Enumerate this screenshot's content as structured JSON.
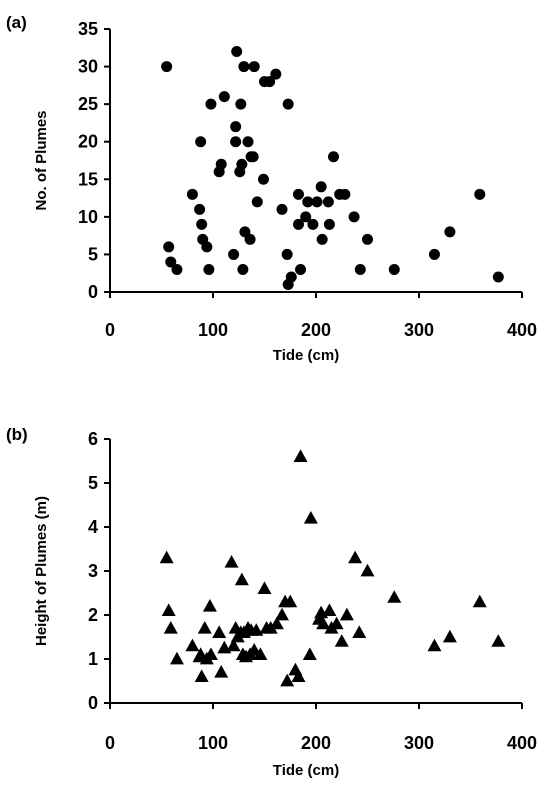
{
  "chart_data": [
    {
      "panel_label": "(a)",
      "type": "scatter",
      "marker": "circle",
      "xlabel": "Tide (cm)",
      "ylabel": "No. of Plumes",
      "xlim": [
        0,
        400
      ],
      "ylim": [
        0,
        35
      ],
      "xticks": [
        0,
        100,
        200,
        300,
        400
      ],
      "yticks": [
        0,
        5,
        10,
        15,
        20,
        25,
        30,
        35
      ],
      "grid": false,
      "series": [
        {
          "points": [
            [
              55,
              30
            ],
            [
              57,
              6
            ],
            [
              59,
              4
            ],
            [
              65,
              3
            ],
            [
              80,
              13
            ],
            [
              87,
              11
            ],
            [
              88,
              20
            ],
            [
              89,
              9
            ],
            [
              90,
              7
            ],
            [
              94,
              6
            ],
            [
              96,
              3
            ],
            [
              98,
              25
            ],
            [
              106,
              16
            ],
            [
              108,
              17
            ],
            [
              111,
              26
            ],
            [
              120,
              5
            ],
            [
              122,
              22
            ],
            [
              122,
              20
            ],
            [
              123,
              32
            ],
            [
              126,
              16
            ],
            [
              127,
              25
            ],
            [
              128,
              17
            ],
            [
              129,
              3
            ],
            [
              130,
              30
            ],
            [
              131,
              8
            ],
            [
              134,
              20
            ],
            [
              136,
              7
            ],
            [
              137,
              18
            ],
            [
              139,
              18
            ],
            [
              140,
              30
            ],
            [
              143,
              12
            ],
            [
              149,
              15
            ],
            [
              150,
              28
            ],
            [
              155,
              28
            ],
            [
              161,
              29
            ],
            [
              167,
              11
            ],
            [
              172,
              5
            ],
            [
              173,
              25
            ],
            [
              173,
              1
            ],
            [
              176,
              2
            ],
            [
              183,
              13
            ],
            [
              183,
              9
            ],
            [
              185,
              3
            ],
            [
              190,
              10
            ],
            [
              192,
              12
            ],
            [
              197,
              9
            ],
            [
              201,
              12
            ],
            [
              205,
              14
            ],
            [
              206,
              7
            ],
            [
              212,
              12
            ],
            [
              213,
              9
            ],
            [
              217,
              18
            ],
            [
              223,
              13
            ],
            [
              228,
              13
            ],
            [
              237,
              10
            ],
            [
              243,
              3
            ],
            [
              250,
              7
            ],
            [
              276,
              3
            ],
            [
              315,
              5
            ],
            [
              330,
              8
            ],
            [
              359,
              13
            ],
            [
              377,
              2
            ]
          ]
        }
      ]
    },
    {
      "panel_label": "(b)",
      "type": "scatter",
      "marker": "triangle",
      "xlabel": "Tide (cm)",
      "ylabel": "Height of Plumes (m)",
      "xlim": [
        0,
        400
      ],
      "ylim": [
        0,
        6
      ],
      "xticks": [
        0,
        100,
        200,
        300,
        400
      ],
      "yticks": [
        0,
        1,
        2,
        3,
        4,
        5,
        6
      ],
      "grid": false,
      "series": [
        {
          "points": [
            [
              55,
              3.3
            ],
            [
              57,
              2.1
            ],
            [
              59,
              1.7
            ],
            [
              65,
              1.0
            ],
            [
              80,
              1.3
            ],
            [
              87,
              1.05
            ],
            [
              88,
              1.1
            ],
            [
              89,
              0.6
            ],
            [
              92,
              1.7
            ],
            [
              94,
              1.0
            ],
            [
              97,
              2.2
            ],
            [
              98,
              1.1
            ],
            [
              106,
              1.6
            ],
            [
              108,
              0.7
            ],
            [
              111,
              1.25
            ],
            [
              118,
              3.2
            ],
            [
              120,
              1.3
            ],
            [
              122,
              1.7
            ],
            [
              124,
              1.5
            ],
            [
              127,
              1.6
            ],
            [
              128,
              2.8
            ],
            [
              129,
              1.1
            ],
            [
              130,
              1.6
            ],
            [
              132,
              1.05
            ],
            [
              134,
              1.7
            ],
            [
              136,
              1.1
            ],
            [
              137,
              1.65
            ],
            [
              140,
              1.2
            ],
            [
              142,
              1.65
            ],
            [
              146,
              1.1
            ],
            [
              150,
              2.6
            ],
            [
              152,
              1.7
            ],
            [
              156,
              1.7
            ],
            [
              162,
              1.8
            ],
            [
              167,
              2.0
            ],
            [
              170,
              2.3
            ],
            [
              172,
              0.5
            ],
            [
              175,
              2.3
            ],
            [
              180,
              0.75
            ],
            [
              183,
              0.6
            ],
            [
              185,
              5.6
            ],
            [
              194,
              1.1
            ],
            [
              195,
              4.2
            ],
            [
              203,
              1.9
            ],
            [
              205,
              2.05
            ],
            [
              207,
              1.8
            ],
            [
              213,
              2.1
            ],
            [
              215,
              1.7
            ],
            [
              220,
              1.8
            ],
            [
              225,
              1.4
            ],
            [
              230,
              2.0
            ],
            [
              238,
              3.3
            ],
            [
              242,
              1.6
            ],
            [
              250,
              3.0
            ],
            [
              276,
              2.4
            ],
            [
              315,
              1.3
            ],
            [
              330,
              1.5
            ],
            [
              359,
              2.3
            ],
            [
              377,
              1.4
            ]
          ]
        }
      ]
    }
  ]
}
